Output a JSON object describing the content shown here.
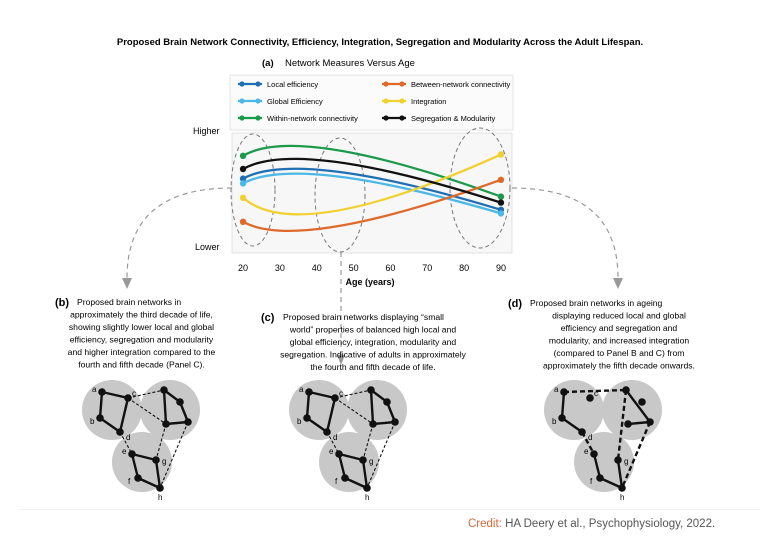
{
  "figure": {
    "title": "Proposed Brain Network Connectivity, Efficiency, Integration, Segregation and Modularity Across the Adult Lifespan.",
    "panel_a": {
      "letter": "(a)",
      "title": "Network Measures Versus Age"
    },
    "y_high": "Higher",
    "y_low": "Lower",
    "x_label": "Age (years)"
  },
  "legend": [
    {
      "label": "Local efficiency",
      "color": "#1f6fb5"
    },
    {
      "label": "Global Efficiency",
      "color": "#4cb8e8"
    },
    {
      "label": "Within-network connectivity",
      "color": "#1a9a4a"
    },
    {
      "label": "Between-network connectivity",
      "color": "#e0692a"
    },
    {
      "label": "Integration",
      "color": "#f0d12f"
    },
    {
      "label": "Segregation & Modularity",
      "color": "#111111"
    }
  ],
  "panels": [
    {
      "letter": "(b)",
      "lines": [
        "Proposed brain networks in",
        "approximately the third decade of life,",
        "showing slightly lower local and global",
        "efficiency, segregation and modularity",
        "and higher integration compared to the",
        "fourth and fifth decade (Panel C)."
      ]
    },
    {
      "letter": "(c)",
      "lines": [
        "Proposed brain networks displaying “small",
        "world” properties of balanced high local and",
        "global efficiency, integration, modularity and",
        "segregation. Indicative of adults in approximately",
        "the fourth and fifth decade of life."
      ]
    },
    {
      "letter": "(d)",
      "lines": [
        "Proposed brain networks in ageing",
        "displaying reduced local and global",
        "efficiency and segregation and",
        "modularity, and increased integration",
        "(compared to Panel B and C) from",
        "approximately the fifth decade onwards."
      ]
    }
  ],
  "node_labels": [
    "a",
    "b",
    "c",
    "d",
    "e",
    "f",
    "g",
    "h"
  ],
  "credit": {
    "label": "Credit:",
    "text": "HA Deery et al., Psychophysiology, 2022."
  },
  "chart_data": {
    "type": "line",
    "title": "Network Measures Versus Age",
    "xlabel": "Age (years)",
    "ylabel": "",
    "x_ticks": [
      20,
      30,
      40,
      50,
      60,
      70,
      80,
      90
    ],
    "xlim": [
      17,
      93
    ],
    "ylim_labels": [
      "Lower",
      "Higher"
    ],
    "ylim": [
      0,
      100
    ],
    "grid": false,
    "legend_position": "top",
    "series": [
      {
        "name": "Local efficiency",
        "color": "#1f6fb5",
        "x": [
          20,
          45,
          90
        ],
        "y": [
          62,
          68,
          36
        ]
      },
      {
        "name": "Global Efficiency",
        "color": "#4cb8e8",
        "x": [
          20,
          45,
          90
        ],
        "y": [
          58,
          64,
          33
        ]
      },
      {
        "name": "Within-network connectivity",
        "color": "#1a9a4a",
        "x": [
          20,
          45,
          90
        ],
        "y": [
          81,
          86,
          47
        ]
      },
      {
        "name": "Between-network connectivity",
        "color": "#e0692a",
        "x": [
          20,
          45,
          90
        ],
        "y": [
          26,
          22,
          61
        ]
      },
      {
        "name": "Integration",
        "color": "#f0d12f",
        "x": [
          20,
          45,
          90
        ],
        "y": [
          46,
          35,
          82
        ]
      },
      {
        "name": "Segregation & Modularity",
        "color": "#111111",
        "x": [
          20,
          45,
          90
        ],
        "y": [
          70,
          76,
          42
        ]
      }
    ]
  }
}
